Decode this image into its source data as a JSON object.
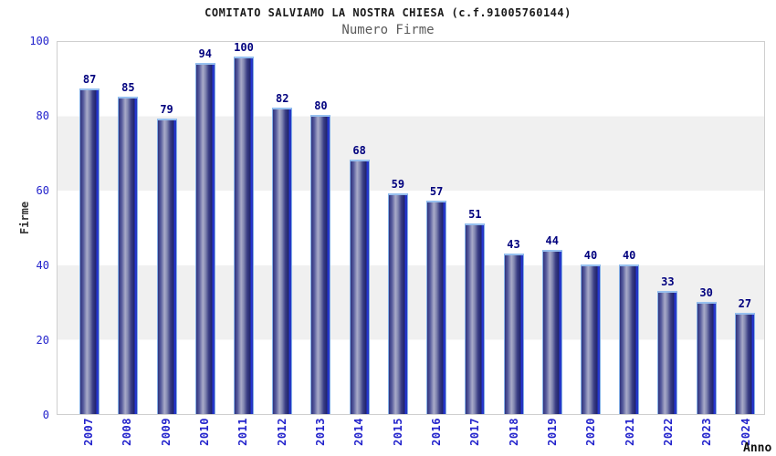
{
  "title": "COMITATO SALVIAMO LA NOSTRA CHIESA (c.f.91005760144)",
  "subtitle": "Numero Firme",
  "chart_data": {
    "type": "bar",
    "title": "COMITATO SALVIAMO LA NOSTRA CHIESA (c.f.91005760144)",
    "subtitle": "Numero Firme",
    "xlabel": "Anno",
    "ylabel": "Firme",
    "categories": [
      "2007",
      "2008",
      "2009",
      "2010",
      "2011",
      "2012",
      "2013",
      "2014",
      "2015",
      "2016",
      "2017",
      "2018",
      "2019",
      "2020",
      "2021",
      "2022",
      "2023",
      "2024"
    ],
    "values": [
      87,
      85,
      79,
      94,
      100,
      82,
      80,
      68,
      59,
      57,
      51,
      43,
      44,
      40,
      40,
      33,
      30,
      27
    ],
    "ylim": [
      0,
      100
    ],
    "yticks": [
      0,
      20,
      40,
      60,
      80,
      100
    ],
    "grid": "alternating horizontal bands every 20 units",
    "legend": "none",
    "value_labels": "above bars"
  },
  "colors": {
    "axis_tick_blue": "#2323cc",
    "value_label_navy": "#00007e",
    "bar_dark": "#23266e",
    "bar_highlight": "#a9abc9",
    "bar_edge_stripe": "#2a3ede",
    "bar_outline": "#86b2e8",
    "band_gray": "#f0f0f0",
    "plot_border": "#cfcfcf",
    "title_color": "#1a1a1a",
    "subtitle_color": "#5a5a5a"
  }
}
